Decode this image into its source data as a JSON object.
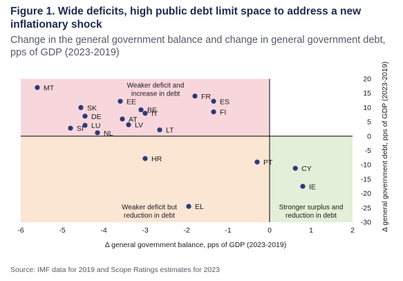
{
  "figure": {
    "title": "Figure 1. Wide deficits, high public debt limit space to address a new inflationary shock",
    "subtitle": "Change in the general government balance and change in general government debt, pps of GDP (2023-2019)",
    "source": "Source: IMF data for 2019 and Scope Ratings estimates for 2023"
  },
  "colors": {
    "point": "#2b3a7a",
    "zone_top_left": "#f8d7dc",
    "zone_bottom_left": "#fbe5d3",
    "zone_bottom_right": "#e3efd8",
    "axis": "#000000",
    "text": "#1a1a1a"
  },
  "chart_data": {
    "type": "scatter",
    "xlabel": "Δ general government balance, pps of GDP (2023-2019)",
    "ylabel": "Δ general government debt, pps of GDP (2023-2019)",
    "xlim": [
      -6,
      2
    ],
    "ylim": [
      -30,
      20
    ],
    "xticks": [
      -6,
      -5,
      -4,
      -3,
      -2,
      -1,
      0,
      1,
      2
    ],
    "yticks": [
      20,
      15,
      10,
      5,
      0,
      -5,
      -10,
      -15,
      -20,
      -25,
      -30
    ],
    "y_axis_side": "right",
    "grid": false,
    "zones": [
      {
        "name": "zone-weaker-deficit-increase-debt",
        "label": "Weaker deficit and\nincrease in debt",
        "x": [
          -6,
          0
        ],
        "y": [
          0,
          20
        ],
        "color": "#f8d7dc"
      },
      {
        "name": "zone-weaker-deficit-reduction-debt",
        "label": "Weaker deficit but\nreduction in debt",
        "x": [
          -6,
          0
        ],
        "y": [
          -30,
          0
        ],
        "color": "#fbe5d3"
      },
      {
        "name": "zone-stronger-surplus-reduction-debt",
        "label": "Stronger surplus and\nreduction in debt",
        "x": [
          0,
          2
        ],
        "y": [
          -30,
          0
        ],
        "color": "#e3efd8"
      }
    ],
    "points": [
      {
        "label": "MT",
        "x": -5.6,
        "y": 17.0
      },
      {
        "label": "EE",
        "x": -3.6,
        "y": 12.2
      },
      {
        "label": "FR",
        "x": -1.8,
        "y": 14.0
      },
      {
        "label": "ES",
        "x": -1.35,
        "y": 12.2
      },
      {
        "label": "FI",
        "x": -1.35,
        "y": 8.5
      },
      {
        "label": "SK",
        "x": -4.55,
        "y": 10.0
      },
      {
        "label": "DE",
        "x": -4.45,
        "y": 7.0
      },
      {
        "label": "BE",
        "x": -3.1,
        "y": 9.2
      },
      {
        "label": "AT",
        "x": -3.55,
        "y": 6.0
      },
      {
        "label": "IT",
        "x": -3.0,
        "y": 8.0
      },
      {
        "label": "LU",
        "x": -4.45,
        "y": 3.8
      },
      {
        "label": "SI",
        "x": -4.8,
        "y": 2.8
      },
      {
        "label": "NL",
        "x": -4.15,
        "y": 1.2
      },
      {
        "label": "LV",
        "x": -3.4,
        "y": 4.0
      },
      {
        "label": "LT",
        "x": -2.65,
        "y": 2.2
      },
      {
        "label": "HR",
        "x": -3.0,
        "y": -7.8
      },
      {
        "label": "PT",
        "x": -0.3,
        "y": -9.0
      },
      {
        "label": "CY",
        "x": 0.62,
        "y": -11.2
      },
      {
        "label": "IE",
        "x": 0.8,
        "y": -17.5
      },
      {
        "label": "EL",
        "x": -1.95,
        "y": -24.5
      }
    ]
  }
}
